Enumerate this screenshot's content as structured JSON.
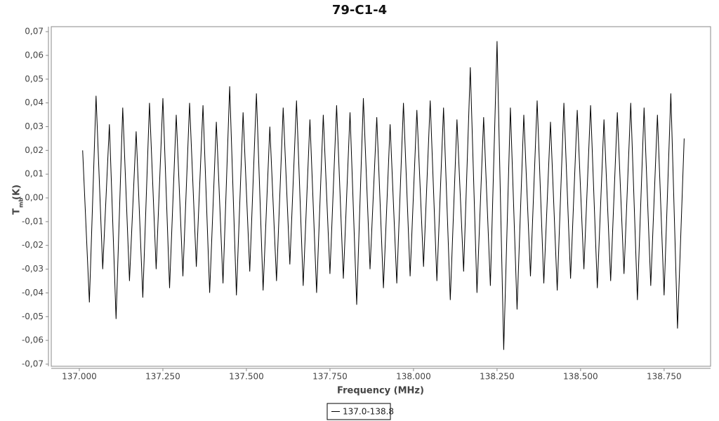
{
  "chart_data": {
    "type": "line",
    "title": "79-C1-4",
    "xlabel": "Frequency (MHz)",
    "ylabel": {
      "text": "T",
      "subscript": "mb",
      "unit": "(K)"
    },
    "x": [
      137.01,
      137.03,
      137.05,
      137.07,
      137.09,
      137.11,
      137.13,
      137.15,
      137.17,
      137.19,
      137.21,
      137.23,
      137.25,
      137.27,
      137.29,
      137.31,
      137.33,
      137.35,
      137.37,
      137.39,
      137.41,
      137.43,
      137.45,
      137.47,
      137.49,
      137.51,
      137.53,
      137.55,
      137.57,
      137.59,
      137.61,
      137.63,
      137.65,
      137.67,
      137.69,
      137.71,
      137.73,
      137.75,
      137.77,
      137.79,
      137.81,
      137.83,
      137.85,
      137.87,
      137.89,
      137.91,
      137.93,
      137.95,
      137.97,
      137.99,
      138.01,
      138.03,
      138.05,
      138.07,
      138.09,
      138.11,
      138.13,
      138.15,
      138.17,
      138.19,
      138.21,
      138.23,
      138.25,
      138.27,
      138.29,
      138.31,
      138.33,
      138.35,
      138.37,
      138.39,
      138.41,
      138.43,
      138.45,
      138.47,
      138.49,
      138.51,
      138.53,
      138.55,
      138.57,
      138.59,
      138.61,
      138.63,
      138.65,
      138.67,
      138.69,
      138.71,
      138.73,
      138.75,
      138.77,
      138.79,
      138.81
    ],
    "series": [
      {
        "name": "137.0-138.8",
        "color": "#000000",
        "values": [
          0.02,
          -0.044,
          0.043,
          -0.03,
          0.031,
          -0.051,
          0.038,
          -0.035,
          0.028,
          -0.042,
          0.04,
          -0.03,
          0.042,
          -0.038,
          0.035,
          -0.033,
          0.04,
          -0.029,
          0.039,
          -0.04,
          0.032,
          -0.036,
          0.047,
          -0.041,
          0.036,
          -0.031,
          0.044,
          -0.039,
          0.03,
          -0.035,
          0.038,
          -0.028,
          0.041,
          -0.037,
          0.033,
          -0.04,
          0.035,
          -0.032,
          0.039,
          -0.034,
          0.036,
          -0.045,
          0.042,
          -0.03,
          0.034,
          -0.038,
          0.031,
          -0.036,
          0.04,
          -0.033,
          0.037,
          -0.029,
          0.041,
          -0.035,
          0.038,
          -0.043,
          0.033,
          -0.031,
          0.055,
          -0.04,
          0.034,
          -0.037,
          0.066,
          -0.064,
          0.038,
          -0.047,
          0.035,
          -0.033,
          0.041,
          -0.036,
          0.032,
          -0.039,
          0.04,
          -0.034,
          0.037,
          -0.03,
          0.039,
          -0.038,
          0.033,
          -0.035,
          0.036,
          -0.032,
          0.04,
          -0.043,
          0.038,
          -0.037,
          0.035,
          -0.041,
          0.044,
          -0.055,
          0.025
        ]
      }
    ],
    "xlim": [
      136.916,
      138.889
    ],
    "ylim": [
      -0.0709,
      0.0721
    ],
    "xticks": [
      {
        "value": 137,
        "label": "137.000"
      },
      {
        "value": 137.25,
        "label": "137.250"
      },
      {
        "value": 137.5,
        "label": "137.500"
      },
      {
        "value": 137.75,
        "label": "137.750"
      },
      {
        "value": 138,
        "label": "138.000"
      },
      {
        "value": 138.25,
        "label": "138.250"
      },
      {
        "value": 138.5,
        "label": "138.500"
      },
      {
        "value": 138.75,
        "label": "138.750"
      }
    ],
    "yticks": [
      {
        "value": -0.07,
        "label": "-0,07"
      },
      {
        "value": -0.06,
        "label": "-0,06"
      },
      {
        "value": -0.05,
        "label": "-0,05"
      },
      {
        "value": -0.04,
        "label": "-0,04"
      },
      {
        "value": -0.03,
        "label": "-0,03"
      },
      {
        "value": -0.02,
        "label": "-0,02"
      },
      {
        "value": -0.01,
        "label": "-0,01"
      },
      {
        "value": 0,
        "label": "0,00"
      },
      {
        "value": 0.01,
        "label": "0,01"
      },
      {
        "value": 0.02,
        "label": "0,02"
      },
      {
        "value": 0.03,
        "label": "0,03"
      },
      {
        "value": 0.04,
        "label": "0,04"
      },
      {
        "value": 0.05,
        "label": "0,05"
      },
      {
        "value": 0.06,
        "label": "0,06"
      },
      {
        "value": 0.07,
        "label": "0,07"
      }
    ],
    "legend": "bottom"
  }
}
